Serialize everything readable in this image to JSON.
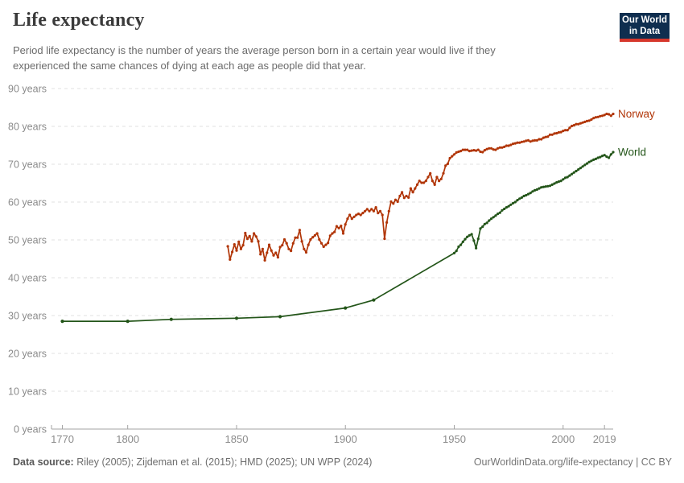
{
  "header": {
    "title": "Life expectancy",
    "subtitle_lines": [
      "Period life expectancy is the number of years the average person born in a certain year would live if they",
      "experienced the same chances of dying at each age as people did that year."
    ]
  },
  "logo": {
    "line1": "Our World",
    "line2": "in Data",
    "bg_color": "#0f2e4f",
    "accent_color": "#d6372c"
  },
  "footer": {
    "source_label": "Data source:",
    "source_text": " Riley (2005); Zijdeman et al. (2015); HMD (2025); UN WPP (2024)",
    "link_text": "OurWorldinData.org/life-expectancy | CC BY"
  },
  "colors": {
    "grid": "#e2e2e2",
    "axis": "#a3a3a3",
    "tick_text": "#8b8b8b"
  },
  "chart_data": {
    "type": "line",
    "title": "Life expectancy",
    "xlabel": "",
    "ylabel": "",
    "grid": "horizontal-dashed",
    "legend": "end-of-line-labels",
    "x_domain": [
      1765,
      2023
    ],
    "y_domain": [
      0,
      90
    ],
    "x_ticks": [
      1770,
      1800,
      1850,
      1900,
      1950,
      2000,
      2019
    ],
    "y_ticks": [
      0,
      10,
      20,
      30,
      40,
      50,
      60,
      70,
      80,
      90
    ],
    "y_tick_suffix": " years",
    "series": [
      {
        "name": "Norway",
        "color": "#b13507",
        "points": [
          [
            1846,
            48.3
          ],
          [
            1847,
            44.8
          ],
          [
            1848,
            46.8
          ],
          [
            1849,
            48.8
          ],
          [
            1850,
            47.2
          ],
          [
            1851,
            49.5
          ],
          [
            1852,
            47.6
          ],
          [
            1853,
            48.6
          ],
          [
            1854,
            51.8
          ],
          [
            1855,
            50.3
          ],
          [
            1856,
            51.0
          ],
          [
            1857,
            49.6
          ],
          [
            1858,
            51.7
          ],
          [
            1859,
            50.9
          ],
          [
            1860,
            49.6
          ],
          [
            1861,
            46.2
          ],
          [
            1862,
            47.6
          ],
          [
            1863,
            44.6
          ],
          [
            1864,
            46.6
          ],
          [
            1865,
            48.7
          ],
          [
            1866,
            47.2
          ],
          [
            1867,
            45.9
          ],
          [
            1868,
            46.6
          ],
          [
            1869,
            45.4
          ],
          [
            1870,
            48.1
          ],
          [
            1871,
            48.6
          ],
          [
            1872,
            50.1
          ],
          [
            1873,
            49.1
          ],
          [
            1874,
            47.6
          ],
          [
            1875,
            47.1
          ],
          [
            1876,
            49.1
          ],
          [
            1877,
            50.6
          ],
          [
            1878,
            50.6
          ],
          [
            1879,
            52.6
          ],
          [
            1880,
            49.6
          ],
          [
            1881,
            47.6
          ],
          [
            1882,
            46.7
          ],
          [
            1883,
            48.7
          ],
          [
            1884,
            50.1
          ],
          [
            1885,
            50.7
          ],
          [
            1886,
            51.2
          ],
          [
            1887,
            51.7
          ],
          [
            1888,
            50.1
          ],
          [
            1889,
            49.1
          ],
          [
            1890,
            48.2
          ],
          [
            1891,
            48.7
          ],
          [
            1892,
            49.2
          ],
          [
            1893,
            51.1
          ],
          [
            1894,
            51.7
          ],
          [
            1895,
            52.1
          ],
          [
            1896,
            53.6
          ],
          [
            1897,
            53.1
          ],
          [
            1898,
            53.7
          ],
          [
            1899,
            51.7
          ],
          [
            1900,
            54.1
          ],
          [
            1901,
            55.6
          ],
          [
            1902,
            56.6
          ],
          [
            1903,
            55.6
          ],
          [
            1904,
            56.1
          ],
          [
            1905,
            56.6
          ],
          [
            1906,
            56.9
          ],
          [
            1907,
            56.6
          ],
          [
            1908,
            57.1
          ],
          [
            1909,
            57.6
          ],
          [
            1910,
            58.1
          ],
          [
            1911,
            57.6
          ],
          [
            1912,
            58.1
          ],
          [
            1913,
            57.6
          ],
          [
            1914,
            58.6
          ],
          [
            1915,
            57.1
          ],
          [
            1916,
            57.6
          ],
          [
            1917,
            56.6
          ],
          [
            1918,
            50.3
          ],
          [
            1919,
            54.6
          ],
          [
            1920,
            57.6
          ],
          [
            1921,
            60.1
          ],
          [
            1922,
            59.6
          ],
          [
            1923,
            60.6
          ],
          [
            1924,
            60.1
          ],
          [
            1925,
            61.6
          ],
          [
            1926,
            62.6
          ],
          [
            1927,
            61.1
          ],
          [
            1928,
            61.6
          ],
          [
            1929,
            61.2
          ],
          [
            1930,
            63.6
          ],
          [
            1931,
            62.6
          ],
          [
            1932,
            63.6
          ],
          [
            1933,
            64.6
          ],
          [
            1934,
            65.6
          ],
          [
            1935,
            65.1
          ],
          [
            1936,
            65.1
          ],
          [
            1937,
            65.6
          ],
          [
            1938,
            66.6
          ],
          [
            1939,
            67.6
          ],
          [
            1940,
            65.6
          ],
          [
            1941,
            64.6
          ],
          [
            1942,
            66.6
          ],
          [
            1943,
            65.6
          ],
          [
            1944,
            66.1
          ],
          [
            1945,
            67.6
          ],
          [
            1946,
            69.6
          ],
          [
            1947,
            70.1
          ],
          [
            1948,
            71.6
          ],
          [
            1949,
            72.1
          ],
          [
            1950,
            72.6
          ],
          [
            1951,
            73.1
          ],
          [
            1952,
            73.3
          ],
          [
            1953,
            73.5
          ],
          [
            1954,
            73.8
          ],
          [
            1955,
            73.8
          ],
          [
            1956,
            73.8
          ],
          [
            1957,
            73.5
          ],
          [
            1958,
            73.6
          ],
          [
            1959,
            73.7
          ],
          [
            1960,
            73.6
          ],
          [
            1961,
            73.8
          ],
          [
            1962,
            73.3
          ],
          [
            1963,
            73.2
          ],
          [
            1964,
            73.7
          ],
          [
            1965,
            74.0
          ],
          [
            1966,
            74.2
          ],
          [
            1967,
            74.2
          ],
          [
            1968,
            73.9
          ],
          [
            1969,
            73.8
          ],
          [
            1970,
            74.2
          ],
          [
            1971,
            74.4
          ],
          [
            1972,
            74.4
          ],
          [
            1973,
            74.6
          ],
          [
            1974,
            74.9
          ],
          [
            1975,
            74.9
          ],
          [
            1976,
            75.1
          ],
          [
            1977,
            75.4
          ],
          [
            1978,
            75.5
          ],
          [
            1979,
            75.7
          ],
          [
            1980,
            75.7
          ],
          [
            1981,
            75.9
          ],
          [
            1982,
            76.0
          ],
          [
            1983,
            76.2
          ],
          [
            1984,
            76.3
          ],
          [
            1985,
            76.0
          ],
          [
            1986,
            76.2
          ],
          [
            1987,
            76.3
          ],
          [
            1988,
            76.3
          ],
          [
            1989,
            76.6
          ],
          [
            1990,
            76.6
          ],
          [
            1991,
            77.0
          ],
          [
            1992,
            77.2
          ],
          [
            1993,
            77.3
          ],
          [
            1994,
            77.8
          ],
          [
            1995,
            77.8
          ],
          [
            1996,
            78.1
          ],
          [
            1997,
            78.2
          ],
          [
            1998,
            78.4
          ],
          [
            1999,
            78.5
          ],
          [
            2000,
            78.8
          ],
          [
            2001,
            79.0
          ],
          [
            2002,
            79.0
          ],
          [
            2003,
            79.6
          ],
          [
            2004,
            80.1
          ],
          [
            2005,
            80.3
          ],
          [
            2006,
            80.6
          ],
          [
            2007,
            80.6
          ],
          [
            2008,
            80.8
          ],
          [
            2009,
            81.0
          ],
          [
            2010,
            81.2
          ],
          [
            2011,
            81.4
          ],
          [
            2012,
            81.5
          ],
          [
            2013,
            81.8
          ],
          [
            2014,
            82.2
          ],
          [
            2015,
            82.4
          ],
          [
            2016,
            82.5
          ],
          [
            2017,
            82.7
          ],
          [
            2018,
            82.8
          ],
          [
            2019,
            83.0
          ],
          [
            2020,
            83.3
          ],
          [
            2021,
            83.2
          ],
          [
            2022,
            82.8
          ],
          [
            2023,
            83.3
          ]
        ]
      },
      {
        "name": "World",
        "color": "#235519",
        "points": [
          [
            1770,
            28.5
          ],
          [
            1800,
            28.5
          ],
          [
            1820,
            29.0
          ],
          [
            1850,
            29.3
          ],
          [
            1870,
            29.7
          ],
          [
            1900,
            32.0
          ],
          [
            1913,
            34.1
          ],
          [
            1950,
            46.5
          ],
          [
            1951,
            47.1
          ],
          [
            1952,
            48.2
          ],
          [
            1953,
            48.7
          ],
          [
            1954,
            49.5
          ],
          [
            1955,
            50.2
          ],
          [
            1956,
            50.8
          ],
          [
            1957,
            51.2
          ],
          [
            1958,
            51.5
          ],
          [
            1959,
            49.8
          ],
          [
            1960,
            47.8
          ],
          [
            1961,
            50.3
          ],
          [
            1962,
            53.0
          ],
          [
            1963,
            53.5
          ],
          [
            1964,
            54.2
          ],
          [
            1965,
            54.5
          ],
          [
            1966,
            55.1
          ],
          [
            1967,
            55.6
          ],
          [
            1968,
            56.0
          ],
          [
            1969,
            56.4
          ],
          [
            1970,
            56.9
          ],
          [
            1971,
            57.2
          ],
          [
            1972,
            57.8
          ],
          [
            1973,
            58.2
          ],
          [
            1974,
            58.6
          ],
          [
            1975,
            58.9
          ],
          [
            1976,
            59.3
          ],
          [
            1977,
            59.7
          ],
          [
            1978,
            60.0
          ],
          [
            1979,
            60.5
          ],
          [
            1980,
            60.9
          ],
          [
            1981,
            61.2
          ],
          [
            1982,
            61.6
          ],
          [
            1983,
            61.8
          ],
          [
            1984,
            62.1
          ],
          [
            1985,
            62.4
          ],
          [
            1986,
            62.8
          ],
          [
            1987,
            63.1
          ],
          [
            1988,
            63.3
          ],
          [
            1989,
            63.6
          ],
          [
            1990,
            63.9
          ],
          [
            1991,
            64.0
          ],
          [
            1992,
            64.1
          ],
          [
            1993,
            64.2
          ],
          [
            1994,
            64.3
          ],
          [
            1995,
            64.6
          ],
          [
            1996,
            64.9
          ],
          [
            1997,
            65.2
          ],
          [
            1998,
            65.4
          ],
          [
            1999,
            65.6
          ],
          [
            2000,
            66.0
          ],
          [
            2001,
            66.4
          ],
          [
            2002,
            66.6
          ],
          [
            2003,
            67.0
          ],
          [
            2004,
            67.4
          ],
          [
            2005,
            67.8
          ],
          [
            2006,
            68.2
          ],
          [
            2007,
            68.6
          ],
          [
            2008,
            69.0
          ],
          [
            2009,
            69.4
          ],
          [
            2010,
            69.8
          ],
          [
            2011,
            70.2
          ],
          [
            2012,
            70.6
          ],
          [
            2013,
            70.9
          ],
          [
            2014,
            71.2
          ],
          [
            2015,
            71.4
          ],
          [
            2016,
            71.7
          ],
          [
            2017,
            71.9
          ],
          [
            2018,
            72.2
          ],
          [
            2019,
            72.4
          ],
          [
            2020,
            72.0
          ],
          [
            2021,
            71.7
          ],
          [
            2022,
            72.6
          ],
          [
            2023,
            73.2
          ]
        ]
      }
    ]
  }
}
